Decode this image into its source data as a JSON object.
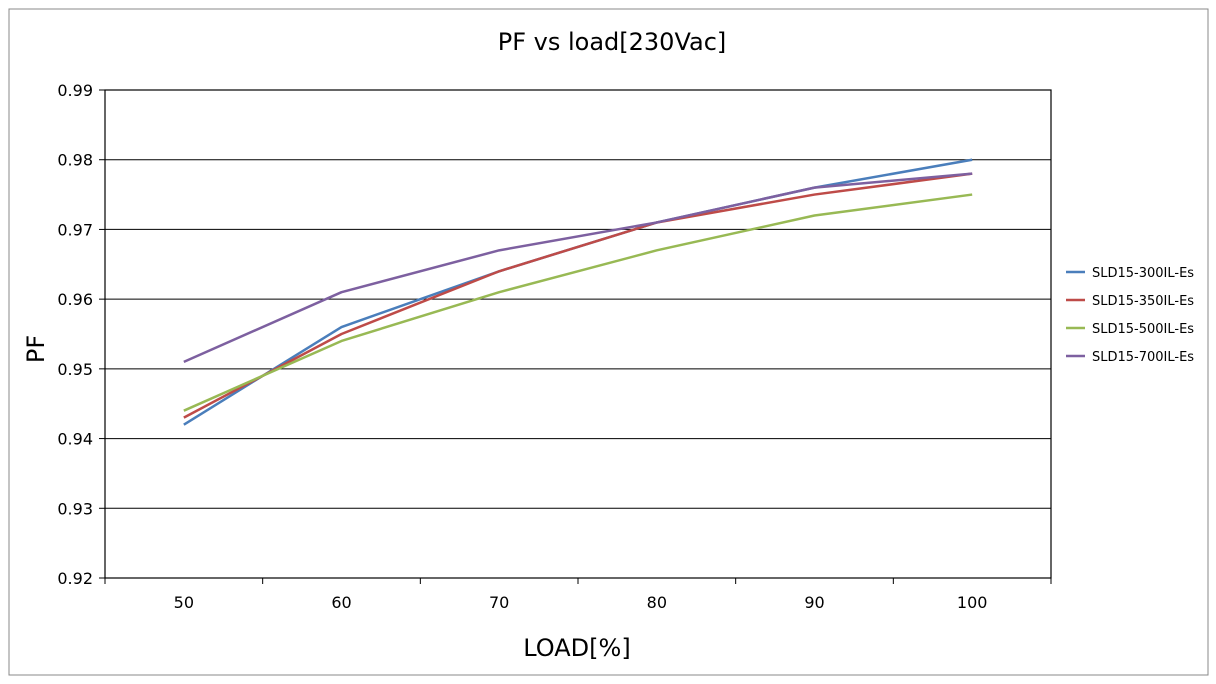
{
  "chart_data": {
    "type": "line",
    "title": "PF vs load[230Vac]",
    "xlabel": "LOAD[%]",
    "ylabel": "PF",
    "x": [
      50,
      60,
      70,
      80,
      90,
      100
    ],
    "x_tick_labels": [
      "50",
      "60",
      "70",
      "80",
      "90",
      "100"
    ],
    "ylim": [
      0.92,
      0.99
    ],
    "y_ticks": [
      0.92,
      0.93,
      0.94,
      0.95,
      0.96,
      0.97,
      0.98,
      0.99
    ],
    "y_tick_labels": [
      "0.92",
      "0.93",
      "0.94",
      "0.95",
      "0.96",
      "0.97",
      "0.98",
      "0.99"
    ],
    "grid": "horizontal",
    "legend_position": "right",
    "series": [
      {
        "name": "SLD15-300IL-Es",
        "color": "#4a7ebb",
        "values": [
          0.942,
          0.956,
          0.964,
          0.971,
          0.976,
          0.98
        ]
      },
      {
        "name": "SLD15-350IL-Es",
        "color": "#be4b48",
        "values": [
          0.943,
          0.955,
          0.964,
          0.971,
          0.975,
          0.978
        ]
      },
      {
        "name": "SLD15-500IL-Es",
        "color": "#98b954",
        "values": [
          0.944,
          0.954,
          0.961,
          0.967,
          0.972,
          0.975
        ]
      },
      {
        "name": "SLD15-700IL-Es",
        "color": "#7d60a0",
        "values": [
          0.951,
          0.961,
          0.967,
          0.971,
          0.976,
          0.978
        ]
      }
    ]
  }
}
